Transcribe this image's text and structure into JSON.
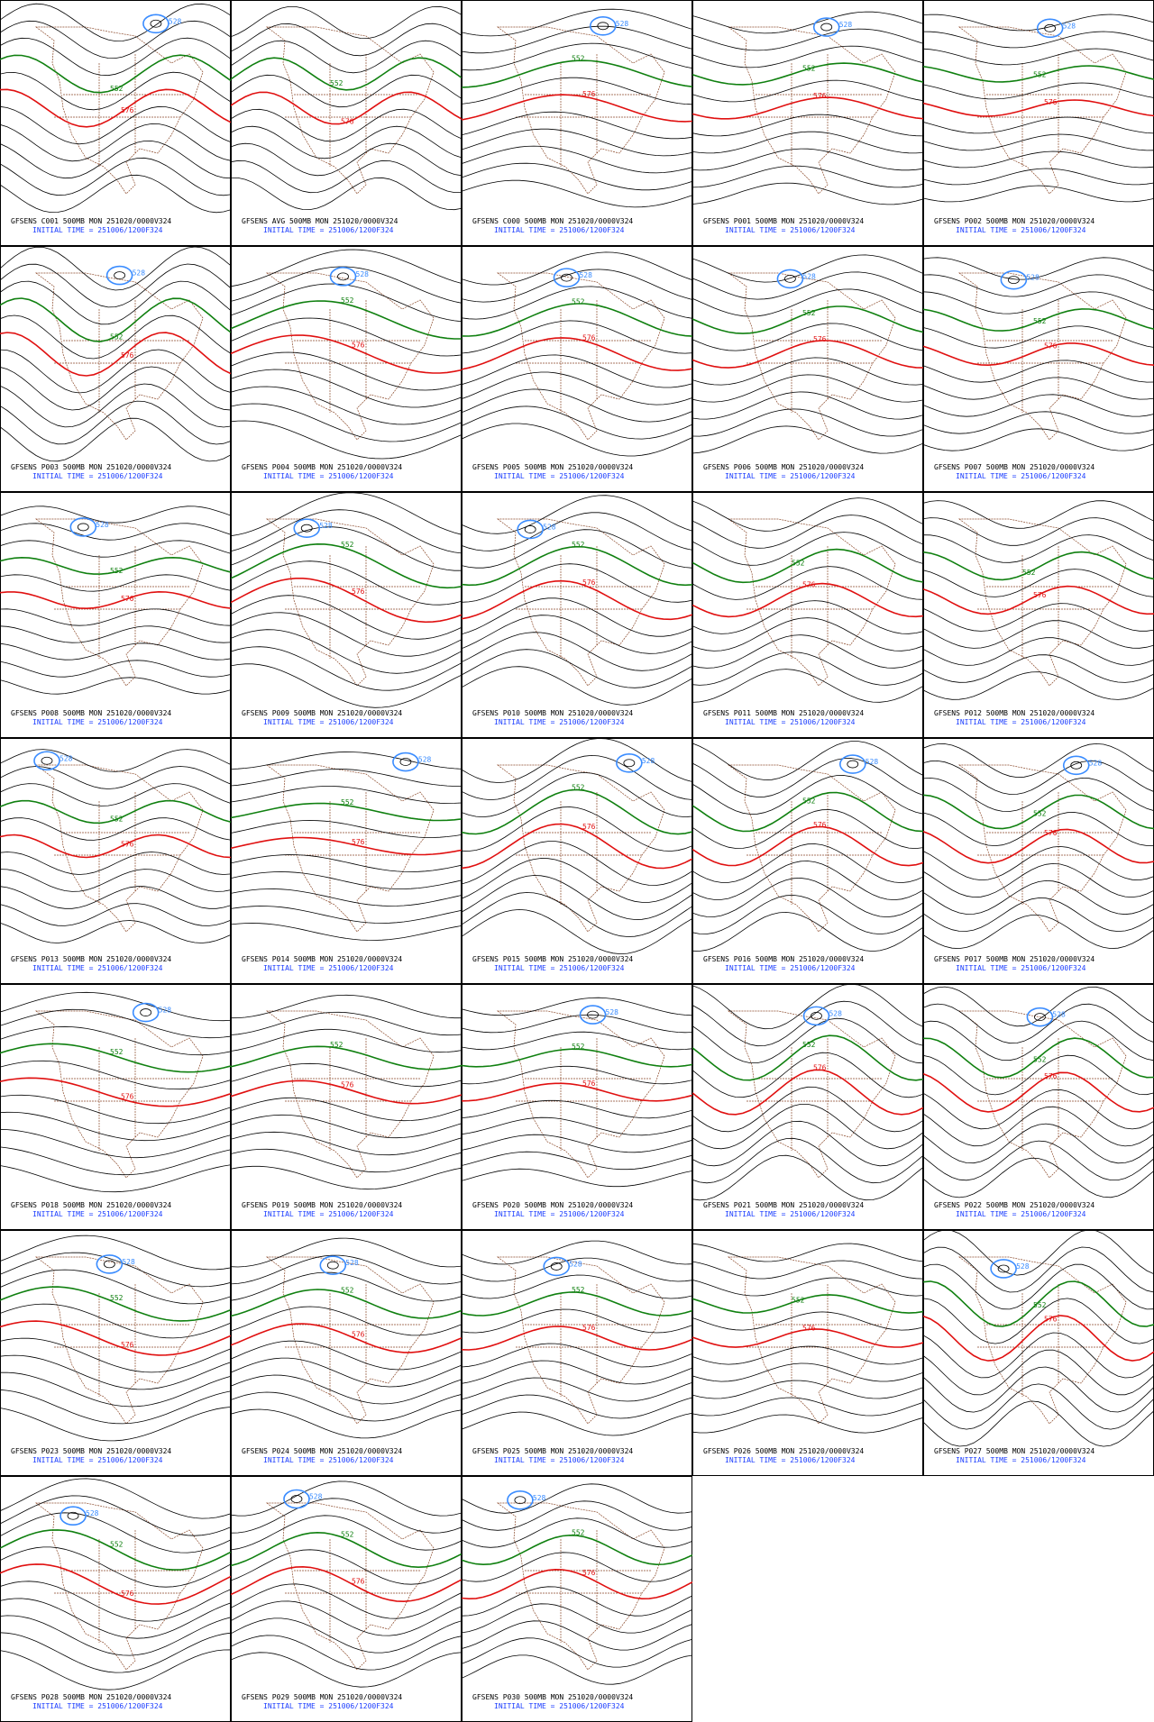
{
  "panels": [
    {
      "title": "GFSENS C001 500MB MON 251020/0000V324",
      "init": "INITIAL TIME = 251006/1200F324",
      "labels": [
        "528",
        "552",
        "576"
      ]
    },
    {
      "title": "GFSENS AVG 500MB MON 251020/0000V324",
      "init": "INITIAL TIME = 251006/1200F324",
      "labels": [
        "552",
        "576"
      ]
    },
    {
      "title": "GFSENS C000 500MB MON 251020/0000V324",
      "init": "INITIAL TIME = 251006/1200F324",
      "labels": [
        "528",
        "552",
        "576"
      ]
    },
    {
      "title": "GFSENS P001 500MB MON 251020/0000V324",
      "init": "INITIAL TIME = 251006/1200F324",
      "labels": [
        "528",
        "552",
        "576"
      ]
    },
    {
      "title": "GFSENS P002 500MB MON 251020/0000V324",
      "init": "INITIAL TIME = 251006/1200F324",
      "labels": [
        "528",
        "552",
        "576"
      ]
    },
    {
      "title": "GFSENS P003 500MB MON 251020/0000V324",
      "init": "INITIAL TIME = 251006/1200F324",
      "labels": [
        "528",
        "552",
        "576"
      ]
    },
    {
      "title": "GFSENS P004 500MB MON 251020/0000V324",
      "init": "INITIAL TIME = 251006/1200F324",
      "labels": [
        "528",
        "552",
        "576"
      ]
    },
    {
      "title": "GFSENS P005 500MB MON 251020/0000V324",
      "init": "INITIAL TIME = 251006/1200F324",
      "labels": [
        "528",
        "552",
        "576"
      ]
    },
    {
      "title": "GFSENS P006 500MB MON 251020/0000V324",
      "init": "INITIAL TIME = 251006/1200F324",
      "labels": [
        "528",
        "552",
        "576"
      ]
    },
    {
      "title": "GFSENS P007 500MB MON 251020/0000V324",
      "init": "INITIAL TIME = 251006/1200F324",
      "labels": [
        "528",
        "552",
        "576"
      ]
    },
    {
      "title": "GFSENS P008 500MB MON 251020/0000V324",
      "init": "INITIAL TIME = 251006/1200F324",
      "labels": [
        "528",
        "552",
        "576"
      ]
    },
    {
      "title": "GFSENS P009 500MB MON 251020/0000V324",
      "init": "INITIAL TIME = 251006/1200F324",
      "labels": [
        "528",
        "552",
        "576"
      ]
    },
    {
      "title": "GFSENS P010 500MB MON 251020/0000V324",
      "init": "INITIAL TIME = 251006/1200F324",
      "labels": [
        "528",
        "552",
        "576"
      ]
    },
    {
      "title": "GFSENS P011 500MB MON 251020/0000V324",
      "init": "INITIAL TIME = 251006/1200F324",
      "labels": [
        "552",
        "576"
      ]
    },
    {
      "title": "GFSENS P012 500MB MON 251020/0000V324",
      "init": "INITIAL TIME = 251006/1200F324",
      "labels": [
        "552",
        "576"
      ]
    },
    {
      "title": "GFSENS P013 500MB MON 251020/0000V324",
      "init": "INITIAL TIME = 251006/1200F324",
      "labels": [
        "528",
        "552",
        "576"
      ]
    },
    {
      "title": "GFSENS P014 500MB MON 251020/0000V324",
      "init": "INITIAL TIME = 251006/1200F324",
      "labels": [
        "528",
        "552",
        "576"
      ]
    },
    {
      "title": "GFSENS P015 500MB MON 251020/0000V324",
      "init": "INITIAL TIME = 251006/1200F324",
      "labels": [
        "528",
        "552",
        "576"
      ]
    },
    {
      "title": "GFSENS P016 500MB MON 251020/0000V324",
      "init": "INITIAL TIME = 251006/1200F324",
      "labels": [
        "528",
        "552",
        "576"
      ]
    },
    {
      "title": "GFSENS P017 500MB MON 251020/0000V324",
      "init": "INITIAL TIME = 251006/1200F324",
      "labels": [
        "528",
        "552",
        "576"
      ]
    },
    {
      "title": "GFSENS P018 500MB MON 251020/0000V324",
      "init": "INITIAL TIME = 251006/1200F324",
      "labels": [
        "528",
        "552",
        "576"
      ]
    },
    {
      "title": "GFSENS P019 500MB MON 251020/0000V324",
      "init": "INITIAL TIME = 251006/1200F324",
      "labels": [
        "552",
        "576"
      ]
    },
    {
      "title": "GFSENS P020 500MB MON 251020/0000V324",
      "init": "INITIAL TIME = 251006/1200F324",
      "labels": [
        "528",
        "552",
        "576"
      ]
    },
    {
      "title": "GFSENS P021 500MB MON 251020/0000V324",
      "init": "INITIAL TIME = 251006/1200F324",
      "labels": [
        "528",
        "552",
        "576"
      ]
    },
    {
      "title": "GFSENS P022 500MB MON 251020/0000V324",
      "init": "INITIAL TIME = 251006/1200F324",
      "labels": [
        "528",
        "552",
        "576"
      ]
    },
    {
      "title": "GFSENS P023 500MB MON 251020/0000V324",
      "init": "INITIAL TIME = 251006/1200F324",
      "labels": [
        "528",
        "552",
        "576"
      ]
    },
    {
      "title": "GFSENS P024 500MB MON 251020/0000V324",
      "init": "INITIAL TIME = 251006/1200F324",
      "labels": [
        "528",
        "552",
        "576"
      ]
    },
    {
      "title": "GFSENS P025 500MB MON 251020/0000V324",
      "init": "INITIAL TIME = 251006/1200F324",
      "labels": [
        "528",
        "552",
        "576"
      ]
    },
    {
      "title": "GFSENS P026 500MB MON 251020/0000V324",
      "init": "INITIAL TIME = 251006/1200F324",
      "labels": [
        "552",
        "576"
      ]
    },
    {
      "title": "GFSENS P027 500MB MON 251020/0000V324",
      "init": "INITIAL TIME = 251006/1200F324",
      "labels": [
        "528",
        "552",
        "576"
      ]
    },
    {
      "title": "GFSENS P028 500MB MON 251020/0000V324",
      "init": "INITIAL TIME = 251006/1200F324",
      "labels": [
        "528",
        "552",
        "576"
      ]
    },
    {
      "title": "GFSENS P029 500MB MON 251020/0000V324",
      "init": "INITIAL TIME = 251006/1200F324",
      "labels": [
        "528",
        "552",
        "576"
      ]
    },
    {
      "title": "GFSENS P030 500MB MON 251020/0000V324",
      "init": "INITIAL TIME = 251006/1200F324",
      "labels": [
        "528",
        "552",
        "576"
      ]
    }
  ]
}
